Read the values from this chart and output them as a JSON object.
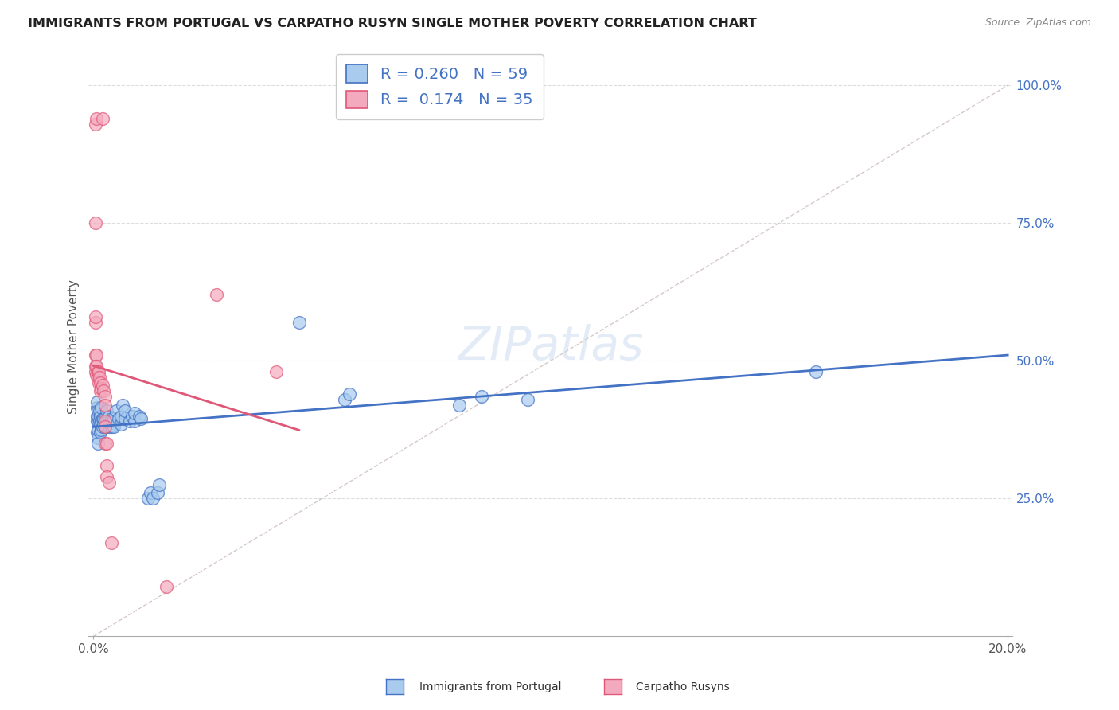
{
  "title": "IMMIGRANTS FROM PORTUGAL VS CARPATHO RUSYN SINGLE MOTHER POVERTY CORRELATION CHART",
  "source": "Source: ZipAtlas.com",
  "ylabel": "Single Mother Poverty",
  "ylabel_right_labels": [
    "25.0%",
    "50.0%",
    "75.0%",
    "100.0%"
  ],
  "ylabel_right_values": [
    0.25,
    0.5,
    0.75,
    1.0
  ],
  "xlim": [
    0.0,
    0.2
  ],
  "ylim": [
    0.0,
    1.05
  ],
  "blue_R": "0.260",
  "blue_N": "59",
  "pink_R": "0.174",
  "pink_N": "35",
  "blue_color": "#A8CBEE",
  "pink_color": "#F4AABE",
  "blue_line_color": "#4472C4",
  "pink_line_color": "#E05878",
  "diagonal_color": "#CCBBBB",
  "grid_color": "#DDDDDD",
  "legend_label_blue": "Immigrants from Portugal",
  "legend_label_pink": "Carpatho Rusyns",
  "watermark": "ZIPatlas",
  "blue_points": [
    [
      0.0008,
      0.37
    ],
    [
      0.0008,
      0.39
    ],
    [
      0.0008,
      0.4
    ],
    [
      0.0008,
      0.415
    ],
    [
      0.0008,
      0.425
    ],
    [
      0.001,
      0.36
    ],
    [
      0.001,
      0.375
    ],
    [
      0.001,
      0.39
    ],
    [
      0.001,
      0.4
    ],
    [
      0.001,
      0.41
    ],
    [
      0.001,
      0.35
    ],
    [
      0.0013,
      0.39
    ],
    [
      0.0013,
      0.41
    ],
    [
      0.0015,
      0.37
    ],
    [
      0.0015,
      0.385
    ],
    [
      0.0015,
      0.4
    ],
    [
      0.0018,
      0.375
    ],
    [
      0.0018,
      0.39
    ],
    [
      0.0018,
      0.415
    ],
    [
      0.002,
      0.38
    ],
    [
      0.002,
      0.395
    ],
    [
      0.0022,
      0.385
    ],
    [
      0.0022,
      0.395
    ],
    [
      0.0025,
      0.38
    ],
    [
      0.0025,
      0.395
    ],
    [
      0.0028,
      0.38
    ],
    [
      0.003,
      0.39
    ],
    [
      0.003,
      0.41
    ],
    [
      0.0035,
      0.38
    ],
    [
      0.0035,
      0.4
    ],
    [
      0.004,
      0.38
    ],
    [
      0.004,
      0.395
    ],
    [
      0.0045,
      0.38
    ],
    [
      0.0045,
      0.395
    ],
    [
      0.005,
      0.41
    ],
    [
      0.0055,
      0.395
    ],
    [
      0.006,
      0.385
    ],
    [
      0.006,
      0.4
    ],
    [
      0.0065,
      0.42
    ],
    [
      0.007,
      0.395
    ],
    [
      0.007,
      0.41
    ],
    [
      0.008,
      0.39
    ],
    [
      0.0085,
      0.4
    ],
    [
      0.009,
      0.39
    ],
    [
      0.009,
      0.405
    ],
    [
      0.01,
      0.4
    ],
    [
      0.0105,
      0.395
    ],
    [
      0.012,
      0.25
    ],
    [
      0.0125,
      0.26
    ],
    [
      0.013,
      0.25
    ],
    [
      0.014,
      0.26
    ],
    [
      0.0145,
      0.275
    ],
    [
      0.045,
      0.57
    ],
    [
      0.055,
      0.43
    ],
    [
      0.056,
      0.44
    ],
    [
      0.08,
      0.42
    ],
    [
      0.085,
      0.435
    ],
    [
      0.095,
      0.43
    ],
    [
      0.158,
      0.48
    ]
  ],
  "pink_points": [
    [
      0.0005,
      0.93
    ],
    [
      0.0007,
      0.94
    ],
    [
      0.002,
      0.94
    ],
    [
      0.0005,
      0.75
    ],
    [
      0.0005,
      0.57
    ],
    [
      0.0005,
      0.58
    ],
    [
      0.0005,
      0.51
    ],
    [
      0.0007,
      0.51
    ],
    [
      0.0005,
      0.48
    ],
    [
      0.0005,
      0.49
    ],
    [
      0.0007,
      0.475
    ],
    [
      0.0007,
      0.49
    ],
    [
      0.001,
      0.48
    ],
    [
      0.001,
      0.47
    ],
    [
      0.0012,
      0.48
    ],
    [
      0.0012,
      0.46
    ],
    [
      0.0013,
      0.47
    ],
    [
      0.0015,
      0.46
    ],
    [
      0.0015,
      0.445
    ],
    [
      0.0018,
      0.45
    ],
    [
      0.002,
      0.455
    ],
    [
      0.0022,
      0.445
    ],
    [
      0.0025,
      0.435
    ],
    [
      0.0025,
      0.42
    ],
    [
      0.0025,
      0.39
    ],
    [
      0.0025,
      0.38
    ],
    [
      0.0025,
      0.35
    ],
    [
      0.003,
      0.35
    ],
    [
      0.003,
      0.31
    ],
    [
      0.003,
      0.29
    ],
    [
      0.0035,
      0.28
    ],
    [
      0.004,
      0.17
    ],
    [
      0.016,
      0.09
    ],
    [
      0.027,
      0.62
    ],
    [
      0.04,
      0.48
    ]
  ]
}
